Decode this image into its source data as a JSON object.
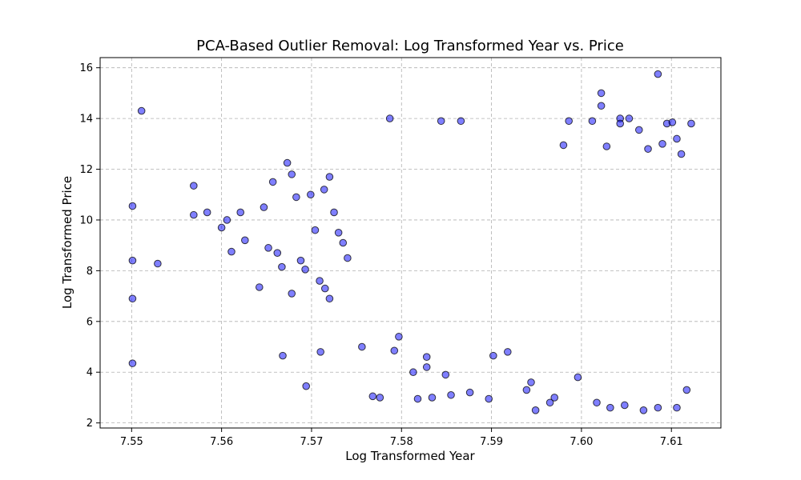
{
  "chart_data": {
    "type": "scatter",
    "title": "PCA-Based Outlier Removal: Log Transformed Year vs. Price",
    "xlabel": "Log Transformed Year",
    "ylabel": "Log Transformed Price",
    "xlim": [
      7.5465,
      7.6155
    ],
    "ylim": [
      1.8,
      16.4
    ],
    "xticks": [
      "7.55",
      "7.56",
      "7.57",
      "7.58",
      "7.59",
      "7.60",
      "7.61"
    ],
    "yticks": [
      "2",
      "4",
      "6",
      "8",
      "10",
      "12",
      "14",
      "16"
    ],
    "grid": true,
    "marker_color": "#0000ff",
    "marker_edge_color": "#000000",
    "points": [
      [
        7.5501,
        10.55
      ],
      [
        7.5501,
        8.4
      ],
      [
        7.5501,
        6.9
      ],
      [
        7.5501,
        4.35
      ],
      [
        7.5511,
        14.3
      ],
      [
        7.5529,
        8.28
      ],
      [
        7.5569,
        10.2
      ],
      [
        7.5569,
        11.35
      ],
      [
        7.5584,
        10.3
      ],
      [
        7.56,
        9.7
      ],
      [
        7.5606,
        10.0
      ],
      [
        7.5611,
        8.75
      ],
      [
        7.5621,
        10.3
      ],
      [
        7.5626,
        9.2
      ],
      [
        7.5642,
        7.35
      ],
      [
        7.5647,
        10.5
      ],
      [
        7.5652,
        8.9
      ],
      [
        7.5657,
        11.5
      ],
      [
        7.5662,
        8.7
      ],
      [
        7.5667,
        8.15
      ],
      [
        7.5668,
        4.65
      ],
      [
        7.5673,
        12.25
      ],
      [
        7.5678,
        11.8
      ],
      [
        7.5678,
        7.1
      ],
      [
        7.5683,
        10.9
      ],
      [
        7.5688,
        8.4
      ],
      [
        7.5693,
        8.05
      ],
      [
        7.5694,
        3.45
      ],
      [
        7.5699,
        11.0
      ],
      [
        7.5704,
        9.6
      ],
      [
        7.5709,
        7.6
      ],
      [
        7.571,
        4.8
      ],
      [
        7.5714,
        11.2
      ],
      [
        7.5715,
        7.3
      ],
      [
        7.572,
        11.7
      ],
      [
        7.572,
        6.9
      ],
      [
        7.5725,
        10.3
      ],
      [
        7.573,
        9.5
      ],
      [
        7.5735,
        9.1
      ],
      [
        7.574,
        8.5
      ],
      [
        7.5756,
        5.0
      ],
      [
        7.5768,
        3.05
      ],
      [
        7.5776,
        3.0
      ],
      [
        7.5787,
        14.0
      ],
      [
        7.5792,
        4.85
      ],
      [
        7.5797,
        5.4
      ],
      [
        7.5813,
        4.0
      ],
      [
        7.5818,
        2.95
      ],
      [
        7.5828,
        4.6
      ],
      [
        7.5828,
        4.2
      ],
      [
        7.5834,
        3.0
      ],
      [
        7.5844,
        13.9
      ],
      [
        7.5849,
        3.9
      ],
      [
        7.5855,
        3.1
      ],
      [
        7.5866,
        13.9
      ],
      [
        7.5876,
        3.2
      ],
      [
        7.5897,
        2.95
      ],
      [
        7.5902,
        4.65
      ],
      [
        7.5918,
        4.8
      ],
      [
        7.5939,
        3.3
      ],
      [
        7.5944,
        3.6
      ],
      [
        7.5949,
        2.5
      ],
      [
        7.5965,
        2.8
      ],
      [
        7.597,
        3.0
      ],
      [
        7.598,
        12.95
      ],
      [
        7.5986,
        13.9
      ],
      [
        7.5996,
        3.8
      ],
      [
        7.6012,
        13.9
      ],
      [
        7.6022,
        15.0
      ],
      [
        7.6022,
        14.5
      ],
      [
        7.6028,
        12.9
      ],
      [
        7.6043,
        14.0
      ],
      [
        7.6043,
        13.8
      ],
      [
        7.6053,
        14.0
      ],
      [
        7.6064,
        13.55
      ],
      [
        7.6074,
        12.8
      ],
      [
        7.6085,
        15.75
      ],
      [
        7.609,
        13.0
      ],
      [
        7.6095,
        13.8
      ],
      [
        7.6101,
        13.85
      ],
      [
        7.6106,
        13.2
      ],
      [
        7.6111,
        12.6
      ],
      [
        7.6122,
        13.8
      ],
      [
        7.6117,
        3.3
      ],
      [
        7.6106,
        2.6
      ],
      [
        7.6085,
        2.6
      ],
      [
        7.6069,
        2.5
      ],
      [
        7.6048,
        2.7
      ],
      [
        7.6032,
        2.6
      ],
      [
        7.6017,
        2.8
      ]
    ]
  }
}
